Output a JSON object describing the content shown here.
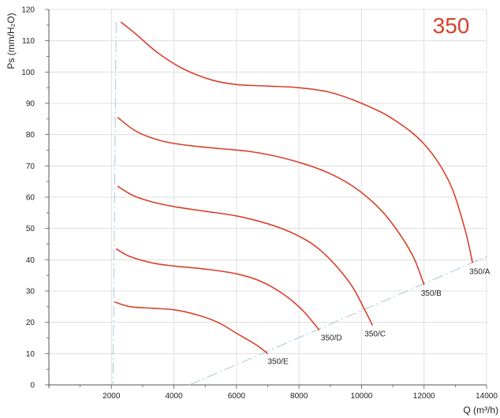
{
  "colors": {
    "curve": "#d9412b",
    "grid": "#d9d9d9",
    "axis": "#555555",
    "surge": "#a9c6d6",
    "title": "#d9412b"
  },
  "chart_data": {
    "type": "line",
    "title": "350",
    "xlabel": "Q (m³/h)",
    "ylabel": "Ps (mm/H₂O)",
    "xlim": [
      0,
      14000
    ],
    "ylim": [
      0,
      120
    ],
    "x_ticks": [
      2000,
      4000,
      6000,
      8000,
      10000,
      12000,
      14000
    ],
    "x_tick_labels": [
      "2000",
      "4000",
      "6000",
      "8000",
      "10000",
      "12000",
      "14000"
    ],
    "y_ticks": [
      0,
      10,
      20,
      30,
      40,
      50,
      60,
      70,
      80,
      90,
      100,
      110,
      120
    ],
    "y_tick_labels": [
      "0",
      "10",
      "20",
      "30",
      "40",
      "50",
      "60",
      "70",
      "80",
      "90",
      "100",
      "110",
      "120"
    ],
    "grid": true,
    "series": [
      {
        "name": "350/A",
        "points": [
          [
            2300,
            116
          ],
          [
            2800,
            112
          ],
          [
            3500,
            106
          ],
          [
            4300,
            101
          ],
          [
            5200,
            97.5
          ],
          [
            6000,
            96
          ],
          [
            7000,
            95.5
          ],
          [
            8000,
            95
          ],
          [
            9000,
            93.5
          ],
          [
            10000,
            90
          ],
          [
            11000,
            85
          ],
          [
            12000,
            77
          ],
          [
            12800,
            65
          ],
          [
            13300,
            50
          ],
          [
            13550,
            39
          ]
        ]
      },
      {
        "name": "350/B",
        "points": [
          [
            2200,
            85.5
          ],
          [
            2800,
            81
          ],
          [
            3600,
            78
          ],
          [
            4500,
            76.5
          ],
          [
            5500,
            75.5
          ],
          [
            6500,
            74.5
          ],
          [
            7500,
            72.5
          ],
          [
            8500,
            69.5
          ],
          [
            9300,
            66
          ],
          [
            10000,
            61.5
          ],
          [
            10700,
            55
          ],
          [
            11300,
            47
          ],
          [
            11700,
            40
          ],
          [
            12000,
            32
          ]
        ]
      },
      {
        "name": "350/C",
        "points": [
          [
            2200,
            63.5
          ],
          [
            2700,
            60.5
          ],
          [
            3300,
            58.5
          ],
          [
            4000,
            57
          ],
          [
            5000,
            55.5
          ],
          [
            6000,
            54
          ],
          [
            7000,
            51.5
          ],
          [
            7800,
            48.5
          ],
          [
            8500,
            44.5
          ],
          [
            9100,
            39
          ],
          [
            9700,
            31.5
          ],
          [
            10100,
            24
          ],
          [
            10350,
            19
          ]
        ]
      },
      {
        "name": "350/D",
        "points": [
          [
            2150,
            43.5
          ],
          [
            2600,
            41
          ],
          [
            3300,
            39
          ],
          [
            4000,
            38
          ],
          [
            5000,
            37
          ],
          [
            6000,
            35.5
          ],
          [
            6800,
            33
          ],
          [
            7500,
            29
          ],
          [
            8100,
            24
          ],
          [
            8650,
            17.5
          ]
        ]
      },
      {
        "name": "350/E",
        "points": [
          [
            2100,
            26.5
          ],
          [
            2600,
            25
          ],
          [
            3300,
            24.5
          ],
          [
            4000,
            24
          ],
          [
            4700,
            22.5
          ],
          [
            5400,
            20
          ],
          [
            6000,
            16.5
          ],
          [
            6600,
            13
          ],
          [
            7000,
            10
          ]
        ]
      }
    ],
    "surge_line": [
      [
        2150,
        116
      ],
      [
        2050,
        0
      ]
    ],
    "operating_line": [
      [
        4500,
        0
      ],
      [
        14000,
        41
      ]
    ]
  }
}
